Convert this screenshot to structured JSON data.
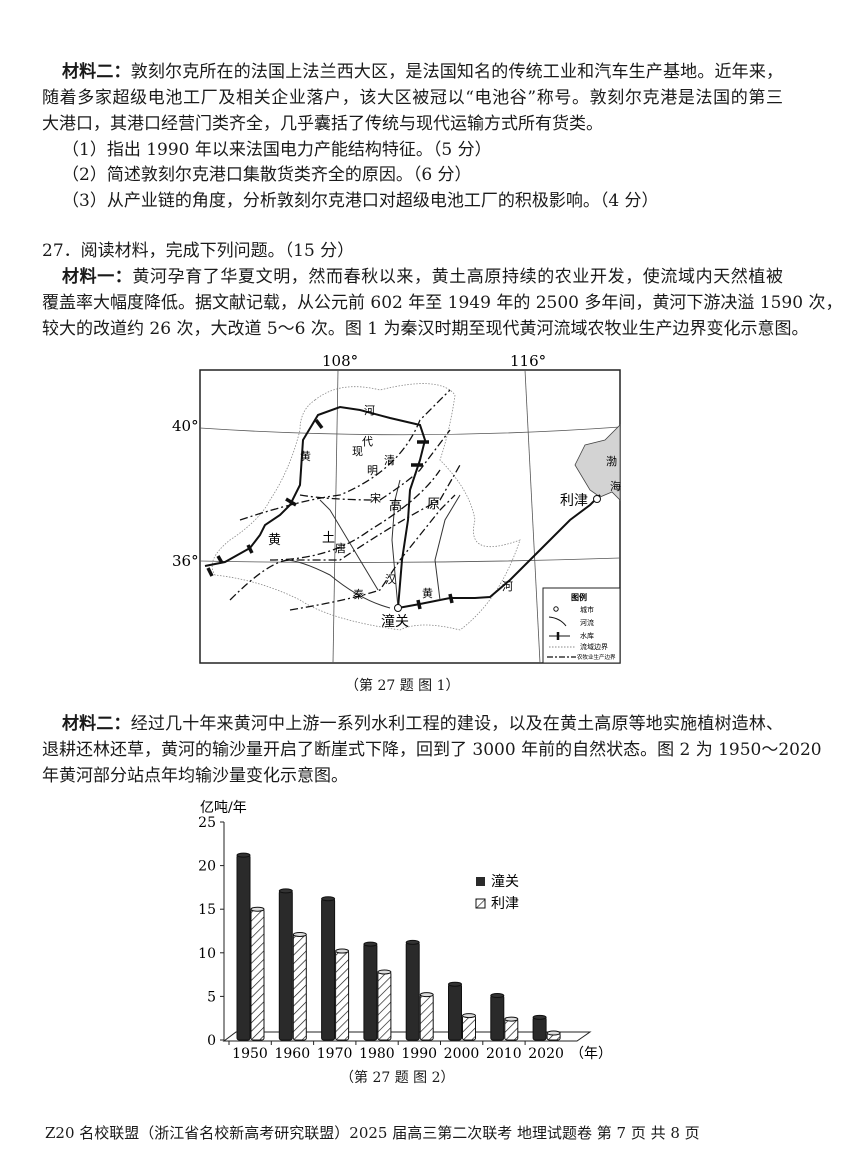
{
  "q26_material2": {
    "label": "材料二：",
    "lines": [
      "敦刻尔克所在的法国上法兰西大区，是法国知名的传统工业和汽车生产基地。近年来，",
      "随着多家超级电池工厂及相关企业落户，该大区被冠以“电池谷”称号。敦刻尔克港是法国的第三",
      "大港口，其港口经营门类齐全，几乎囊括了传统与现代运输方式所有货类。"
    ]
  },
  "q26_questions": [
    "（1）指出 1990 年以来法国电力产能结构特征。（5 分）",
    "（2）简述敦刻尔克港口集散货类齐全的原因。（6 分）",
    "（3）从产业链的角度，分析敦刻尔克港口对超级电池工厂的积极影响。（4 分）"
  ],
  "q27_title": "27．阅读材料，完成下列问题。（15 分）",
  "q27_material1": {
    "label": "材料一：",
    "lines": [
      "黄河孕育了华夏文明，然而春秋以来，黄土高原持续的农业开发，使流域内天然植被",
      "覆盖率大幅度降低。据文献记载，从公元前 602 年至 1949 年的 2500 多年间，黄河下游决溢 1590 次，",
      "较大的改道约 26 次，大改道 5～6 次。图 1 为秦汉时期至现代黄河流域农牧业生产边界变化示意图。"
    ]
  },
  "map": {
    "longitudes": [
      "108°",
      "116°"
    ],
    "latitudes": [
      "40°",
      "36°"
    ],
    "labels": {
      "he1": "河",
      "huang1": "黄",
      "xian": "现",
      "dai": "代",
      "ming": "明",
      "qing": "清",
      "song": "宋",
      "gao": "高",
      "yuan": "原",
      "tu": "土",
      "huang2": "黄",
      "tang": "唐",
      "han": "汉",
      "qin": "秦",
      "huang3": "黄",
      "he2": "河",
      "bo": "渤",
      "hai": "海"
    },
    "cities": [
      "利津",
      "潼关"
    ],
    "legend": {
      "title": "图例",
      "items": [
        "城市",
        "河流",
        "水库",
        "流域边界",
        "农牧业生产边界"
      ]
    },
    "caption": "（第 27 题  图 1）"
  },
  "q27_material2": {
    "label": "材料二：",
    "lines": [
      "经过几十年来黄河中上游一系列水利工程的建设，以及在黄土高原等地实施植树造林、",
      "退耕还林还草，黄河的输沙量开启了断崖式下降，回到了 3000 年前的自然状态。图 2 为 1950～2020",
      "年黄河部分站点年均输沙量变化示意图。"
    ]
  },
  "chart_data": {
    "type": "bar",
    "ylabel": "亿吨/年",
    "xlabel": "（年）",
    "ylim": [
      0,
      25
    ],
    "yticks": [
      "0",
      "5",
      "10",
      "15",
      "20",
      "25"
    ],
    "categories": [
      "1950",
      "1960",
      "1970",
      "1980",
      "1990",
      "2000",
      "2010",
      "2020"
    ],
    "series": [
      {
        "name": "潼关",
        "values": [
          21.2,
          17.1,
          16.2,
          11.0,
          11.2,
          6.4,
          5.1,
          2.6
        ],
        "style": "solid",
        "color": "#2a2a2a"
      },
      {
        "name": "利津",
        "values": [
          15.0,
          12.1,
          10.2,
          7.8,
          5.2,
          2.8,
          2.4,
          0.8
        ],
        "style": "hatched",
        "color": "#ffffff"
      }
    ],
    "legend_position": "top-right",
    "caption": "（第 27 题  图 2）"
  },
  "footer": "Z20 名校联盟（浙江省名校新高考研究联盟）2025 届高三第二次联考  地理试题卷   第 7 页 共 8 页"
}
